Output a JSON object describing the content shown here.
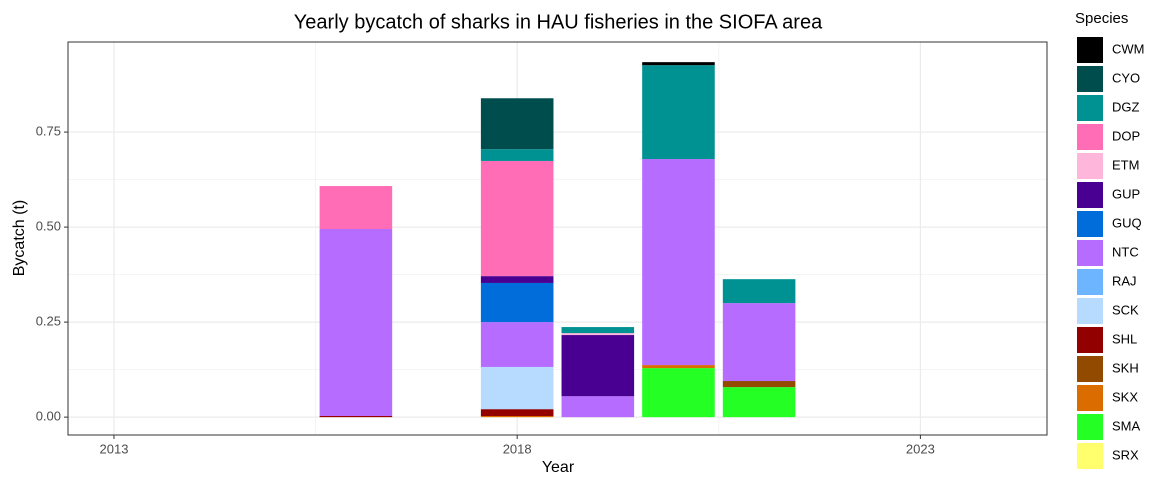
{
  "chart_data": {
    "type": "bar",
    "stacked": true,
    "title": "Yearly bycatch of sharks in HAU fisheries in the SIOFA area",
    "x_label": "Year",
    "y_label": "Bycatch (t)",
    "legend_title": "Species",
    "legend": "right",
    "grid": true,
    "x": [
      2016,
      2018,
      2019,
      2020,
      2021
    ],
    "xlim": [
      2012.43,
      2024.57
    ],
    "xticks": [
      2013,
      2018,
      2023
    ],
    "ylim": [
      -0.047,
      0.987
    ],
    "yticks": [
      {
        "value": 0,
        "label": "0.00"
      },
      0.25,
      {
        "value": 0.5,
        "label": "0.50"
      },
      0.75
    ],
    "series": [
      {
        "name": "CWM",
        "color": "#000000",
        "values": [
          null,
          null,
          null,
          0.008,
          null
        ]
      },
      {
        "name": "CYO",
        "color": "#004d4d",
        "values": [
          null,
          0.134,
          null,
          null,
          null
        ]
      },
      {
        "name": "DGZ",
        "color": "#009292",
        "values": [
          null,
          0.031,
          0.016,
          0.247,
          0.063
        ]
      },
      {
        "name": "DOP",
        "color": "#ff6db6",
        "values": [
          0.113,
          0.303,
          null,
          null,
          null
        ]
      },
      {
        "name": "ETM",
        "color": "#ffb6db",
        "values": [
          null,
          null,
          0.005,
          null,
          null
        ]
      },
      {
        "name": "GUP",
        "color": "#490092",
        "values": [
          null,
          0.018,
          0.161,
          null,
          null
        ]
      },
      {
        "name": "GUQ",
        "color": "#006ddb",
        "values": [
          null,
          0.103,
          null,
          null,
          null
        ]
      },
      {
        "name": "NTC",
        "color": "#b66dff",
        "values": [
          0.492,
          0.118,
          0.055,
          0.542,
          0.205
        ]
      },
      {
        "name": "RAJ",
        "color": "#6db6ff",
        "values": [
          null,
          null,
          null,
          null,
          null
        ]
      },
      {
        "name": "SCK",
        "color": "#b6dbff",
        "values": [
          null,
          0.111,
          null,
          null,
          null
        ]
      },
      {
        "name": "SHL",
        "color": "#920000",
        "values": [
          0.003,
          0.018,
          null,
          null,
          null
        ]
      },
      {
        "name": "SKH",
        "color": "#924900",
        "values": [
          null,
          null,
          null,
          null,
          0.016
        ]
      },
      {
        "name": "SKX",
        "color": "#db6d00",
        "values": [
          null,
          0.003,
          null,
          0.008,
          null
        ]
      },
      {
        "name": "SMA",
        "color": "#24ff24",
        "values": [
          null,
          null,
          null,
          0.129,
          0.079
        ]
      },
      {
        "name": "SRX",
        "color": "#ffff6d",
        "values": [
          null,
          null,
          null,
          null,
          null
        ]
      }
    ]
  }
}
